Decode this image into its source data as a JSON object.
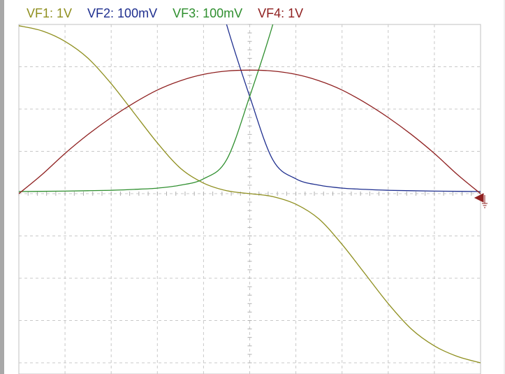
{
  "legend": {
    "vf1": {
      "label": "VF1: 1V",
      "color": "#8f8f1f"
    },
    "vf2": {
      "label": "VF2: 100mV",
      "color": "#1f2f8f"
    },
    "vf3": {
      "label": "VF3: 100mV",
      "color": "#2f8f2f"
    },
    "vf4": {
      "label": "VF4: 1V",
      "color": "#8f2020"
    }
  },
  "chart_data": {
    "type": "line",
    "title": "",
    "xlabel": "",
    "ylabel": "",
    "divisions": {
      "x": 10,
      "y": 8
    },
    "grid": true,
    "xlim": [
      -5,
      5
    ],
    "ylim": [
      -4,
      4
    ],
    "x": [
      -5,
      -4.5,
      -4,
      -3.5,
      -3,
      -2.5,
      -2,
      -1.5,
      -1,
      -0.5,
      0,
      0.5,
      1,
      1.5,
      2,
      2.5,
      3,
      3.5,
      4,
      4.5,
      5
    ],
    "series": [
      {
        "name": "VF1: 1V",
        "color": "#8f8f1f",
        "values": [
          3.97,
          3.85,
          3.6,
          3.2,
          2.6,
          1.9,
          1.2,
          0.6,
          0.25,
          0.07,
          0.0,
          -0.07,
          -0.25,
          -0.6,
          -1.2,
          -1.9,
          -2.6,
          -3.2,
          -3.6,
          -3.85,
          -4.0
        ]
      },
      {
        "name": "VF2: 100mV",
        "color": "#1f2f8f",
        "values": [
          null,
          null,
          null,
          null,
          null,
          null,
          null,
          null,
          null,
          4.0,
          2.3,
          0.8,
          0.35,
          0.2,
          0.13,
          0.1,
          0.08,
          0.07,
          0.06,
          0.055,
          0.05
        ]
      },
      {
        "name": "VF3: 100mV",
        "color": "#2f8f2f",
        "values": [
          0.05,
          0.055,
          0.06,
          0.07,
          0.08,
          0.1,
          0.13,
          0.2,
          0.35,
          0.8,
          2.3,
          4.0,
          null,
          null,
          null,
          null,
          null,
          null,
          null,
          null,
          null
        ]
      },
      {
        "name": "VF4: 1V",
        "color": "#8f2020",
        "values": [
          0.0,
          0.45,
          0.95,
          1.4,
          1.8,
          2.15,
          2.45,
          2.67,
          2.82,
          2.9,
          2.92,
          2.9,
          2.82,
          2.67,
          2.45,
          2.15,
          1.8,
          1.4,
          0.95,
          0.45,
          0.0
        ]
      }
    ],
    "ground_marker_channel": "VF4: 1V"
  }
}
